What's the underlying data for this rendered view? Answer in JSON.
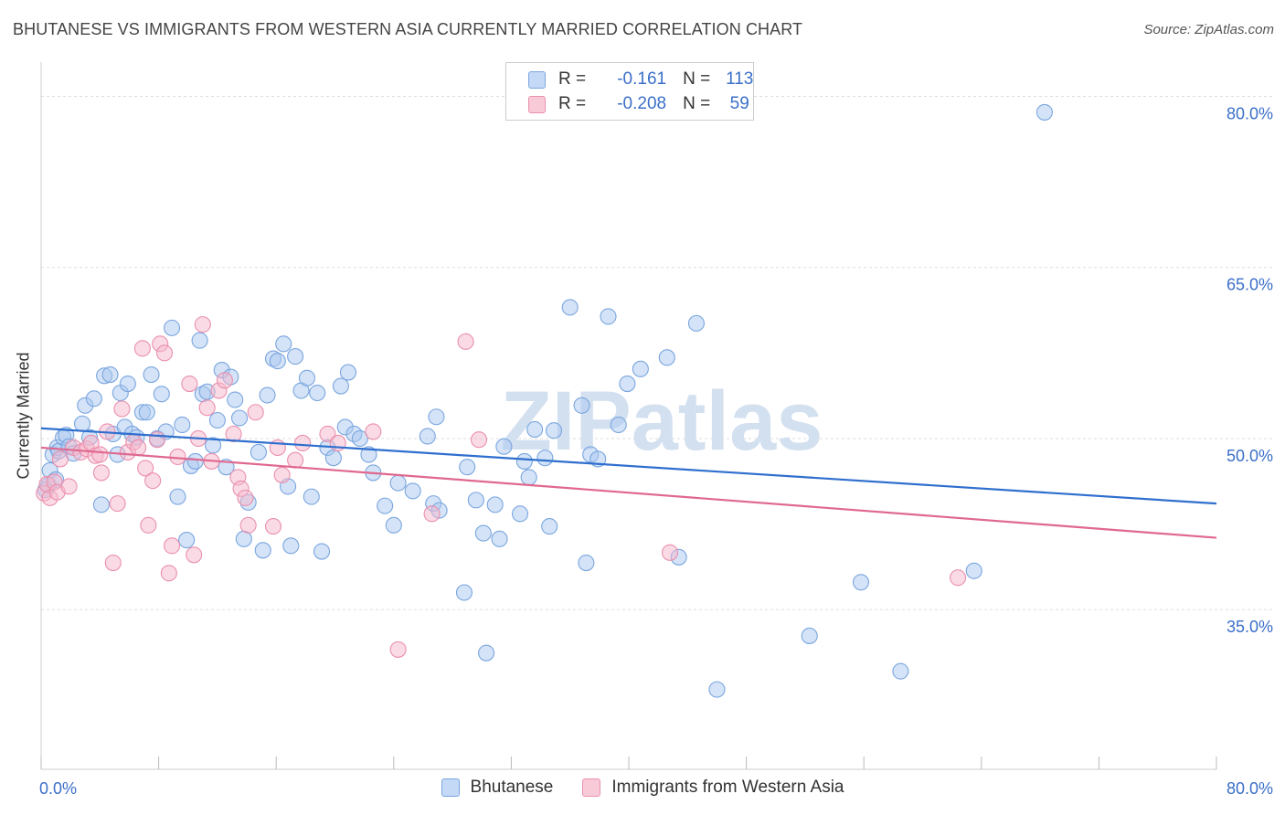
{
  "header": {
    "title": "BHUTANESE VS IMMIGRANTS FROM WESTERN ASIA CURRENTLY MARRIED CORRELATION CHART",
    "source": "Source: ZipAtlas.com"
  },
  "watermark": "ZIPatlas",
  "legend": {
    "rows": [
      {
        "r_label": "R =",
        "r_value": "-0.161",
        "n_label": "N =",
        "n_value": "113"
      },
      {
        "r_label": "R =",
        "r_value": "-0.208",
        "n_label": "N =",
        "n_value": "59"
      }
    ]
  },
  "bottom_legend": [
    {
      "label": "Bhutanese"
    },
    {
      "label": "Immigrants from Western Asia"
    }
  ],
  "colors": {
    "blue_fill": "#aac8ef",
    "blue_stroke": "#7aa6df",
    "blue_line": "#2f6fce",
    "pink_fill": "#f5b8cb",
    "pink_stroke": "#ea8fae",
    "pink_line": "#e0688f",
    "tick_label": "#3b6fc9",
    "grid": "#dddddd"
  },
  "chart_data": {
    "type": "scatter",
    "title": "BHUTANESE VS IMMIGRANTS FROM WESTERN ASIA CURRENTLY MARRIED CORRELATION CHART",
    "xlabel": "",
    "ylabel": "Currently Married",
    "xlim": [
      0,
      80
    ],
    "ylim": [
      21,
      83
    ],
    "x_tick_labels": [
      "0.0%",
      "80.0%"
    ],
    "y_ticks": [
      35,
      50,
      65,
      80
    ],
    "y_tick_labels": [
      "35.0%",
      "50.0%",
      "65.0%",
      "80.0%"
    ],
    "grid": true,
    "legend_position": "top-center",
    "series": [
      {
        "name": "Bhutanese",
        "r": -0.161,
        "n": 113,
        "trend": {
          "x": [
            0,
            80
          ],
          "y": [
            50.9,
            44.3
          ]
        },
        "points": [
          [
            0.3,
            45.5
          ],
          [
            0.5,
            45.9
          ],
          [
            0.6,
            47.2
          ],
          [
            0.8,
            48.6
          ],
          [
            1.0,
            46.4
          ],
          [
            1.1,
            49.2
          ],
          [
            1.2,
            48.9
          ],
          [
            1.5,
            50.1
          ],
          [
            1.7,
            50.3
          ],
          [
            1.9,
            49.3
          ],
          [
            2.2,
            48.7
          ],
          [
            2.8,
            51.3
          ],
          [
            3.0,
            52.9
          ],
          [
            3.3,
            50.1
          ],
          [
            3.6,
            53.5
          ],
          [
            4.1,
            44.2
          ],
          [
            4.3,
            55.5
          ],
          [
            4.7,
            55.6
          ],
          [
            4.9,
            50.4
          ],
          [
            5.2,
            48.6
          ],
          [
            5.4,
            54.0
          ],
          [
            5.7,
            51.0
          ],
          [
            5.9,
            54.8
          ],
          [
            6.2,
            50.4
          ],
          [
            6.5,
            50.1
          ],
          [
            6.9,
            52.3
          ],
          [
            7.2,
            52.3
          ],
          [
            7.5,
            55.6
          ],
          [
            7.9,
            50.0
          ],
          [
            8.2,
            53.9
          ],
          [
            8.5,
            50.6
          ],
          [
            8.9,
            59.7
          ],
          [
            9.3,
            44.9
          ],
          [
            9.6,
            51.2
          ],
          [
            9.9,
            41.1
          ],
          [
            10.2,
            47.6
          ],
          [
            10.5,
            48.0
          ],
          [
            10.8,
            58.6
          ],
          [
            11.0,
            53.9
          ],
          [
            11.3,
            54.1
          ],
          [
            11.7,
            49.4
          ],
          [
            12.0,
            51.6
          ],
          [
            12.3,
            56.0
          ],
          [
            12.6,
            47.5
          ],
          [
            12.9,
            55.4
          ],
          [
            13.2,
            53.4
          ],
          [
            13.5,
            51.8
          ],
          [
            13.8,
            41.2
          ],
          [
            14.1,
            44.4
          ],
          [
            14.8,
            48.8
          ],
          [
            15.1,
            40.2
          ],
          [
            15.4,
            53.8
          ],
          [
            15.8,
            57.0
          ],
          [
            16.1,
            56.8
          ],
          [
            16.5,
            58.3
          ],
          [
            16.8,
            45.8
          ],
          [
            17.0,
            40.6
          ],
          [
            17.3,
            57.2
          ],
          [
            17.7,
            54.2
          ],
          [
            18.1,
            55.3
          ],
          [
            18.4,
            44.9
          ],
          [
            18.8,
            54.0
          ],
          [
            19.1,
            40.1
          ],
          [
            19.5,
            49.2
          ],
          [
            19.9,
            48.3
          ],
          [
            20.4,
            54.6
          ],
          [
            20.7,
            51.0
          ],
          [
            20.9,
            55.8
          ],
          [
            21.3,
            50.4
          ],
          [
            21.7,
            50.0
          ],
          [
            22.3,
            48.6
          ],
          [
            22.6,
            47.0
          ],
          [
            23.4,
            44.1
          ],
          [
            24.0,
            42.4
          ],
          [
            24.3,
            46.1
          ],
          [
            25.3,
            45.4
          ],
          [
            26.3,
            50.2
          ],
          [
            26.7,
            44.3
          ],
          [
            26.9,
            51.9
          ],
          [
            27.1,
            43.7
          ],
          [
            28.8,
            36.5
          ],
          [
            29.0,
            47.5
          ],
          [
            29.6,
            44.6
          ],
          [
            30.1,
            41.7
          ],
          [
            30.3,
            31.2
          ],
          [
            30.9,
            44.2
          ],
          [
            31.2,
            41.2
          ],
          [
            31.5,
            49.3
          ],
          [
            32.6,
            43.4
          ],
          [
            32.9,
            48.0
          ],
          [
            33.2,
            46.6
          ],
          [
            33.6,
            50.8
          ],
          [
            34.3,
            48.3
          ],
          [
            34.6,
            42.3
          ],
          [
            34.9,
            50.7
          ],
          [
            36.0,
            61.5
          ],
          [
            36.8,
            52.9
          ],
          [
            37.1,
            39.1
          ],
          [
            37.4,
            48.6
          ],
          [
            37.9,
            48.2
          ],
          [
            38.6,
            60.7
          ],
          [
            39.3,
            51.2
          ],
          [
            39.9,
            54.8
          ],
          [
            40.8,
            56.1
          ],
          [
            42.6,
            57.1
          ],
          [
            43.4,
            39.6
          ],
          [
            44.6,
            60.1
          ],
          [
            46.0,
            28.0
          ],
          [
            52.3,
            32.7
          ],
          [
            55.8,
            37.4
          ],
          [
            58.5,
            29.6
          ],
          [
            63.5,
            38.4
          ],
          [
            68.3,
            78.6
          ]
        ]
      },
      {
        "name": "Immigrants from Western Asia",
        "r": -0.208,
        "n": 59,
        "trend": {
          "x": [
            0,
            80
          ],
          "y": [
            49.2,
            41.3
          ]
        },
        "points": [
          [
            0.2,
            45.2
          ],
          [
            0.4,
            46.0
          ],
          [
            0.6,
            44.8
          ],
          [
            0.9,
            46.2
          ],
          [
            1.1,
            45.3
          ],
          [
            1.3,
            48.2
          ],
          [
            1.9,
            45.8
          ],
          [
            2.2,
            49.2
          ],
          [
            2.7,
            48.8
          ],
          [
            3.1,
            49.1
          ],
          [
            3.4,
            49.6
          ],
          [
            3.7,
            48.5
          ],
          [
            4.0,
            48.6
          ],
          [
            4.1,
            47.0
          ],
          [
            4.5,
            50.6
          ],
          [
            4.9,
            39.1
          ],
          [
            5.2,
            44.3
          ],
          [
            5.5,
            52.6
          ],
          [
            5.9,
            48.8
          ],
          [
            6.3,
            49.7
          ],
          [
            6.6,
            49.2
          ],
          [
            6.9,
            57.9
          ],
          [
            7.1,
            47.4
          ],
          [
            7.3,
            42.4
          ],
          [
            7.6,
            46.3
          ],
          [
            7.9,
            49.9
          ],
          [
            8.1,
            58.3
          ],
          [
            8.4,
            57.5
          ],
          [
            8.7,
            38.2
          ],
          [
            8.9,
            40.6
          ],
          [
            9.3,
            48.4
          ],
          [
            10.1,
            54.8
          ],
          [
            10.4,
            39.8
          ],
          [
            10.7,
            50.0
          ],
          [
            11.0,
            60.0
          ],
          [
            11.3,
            52.7
          ],
          [
            11.6,
            48.0
          ],
          [
            12.1,
            54.2
          ],
          [
            12.5,
            55.1
          ],
          [
            13.1,
            50.4
          ],
          [
            13.4,
            46.6
          ],
          [
            13.6,
            45.6
          ],
          [
            13.9,
            44.8
          ],
          [
            14.1,
            42.4
          ],
          [
            14.6,
            52.3
          ],
          [
            15.8,
            42.3
          ],
          [
            16.1,
            49.2
          ],
          [
            16.4,
            46.8
          ],
          [
            17.3,
            48.1
          ],
          [
            17.8,
            49.6
          ],
          [
            19.5,
            50.4
          ],
          [
            20.2,
            49.6
          ],
          [
            22.6,
            50.6
          ],
          [
            24.3,
            31.5
          ],
          [
            26.6,
            43.4
          ],
          [
            28.9,
            58.5
          ],
          [
            29.8,
            49.9
          ],
          [
            42.8,
            40.0
          ],
          [
            62.4,
            37.8
          ]
        ]
      }
    ]
  }
}
